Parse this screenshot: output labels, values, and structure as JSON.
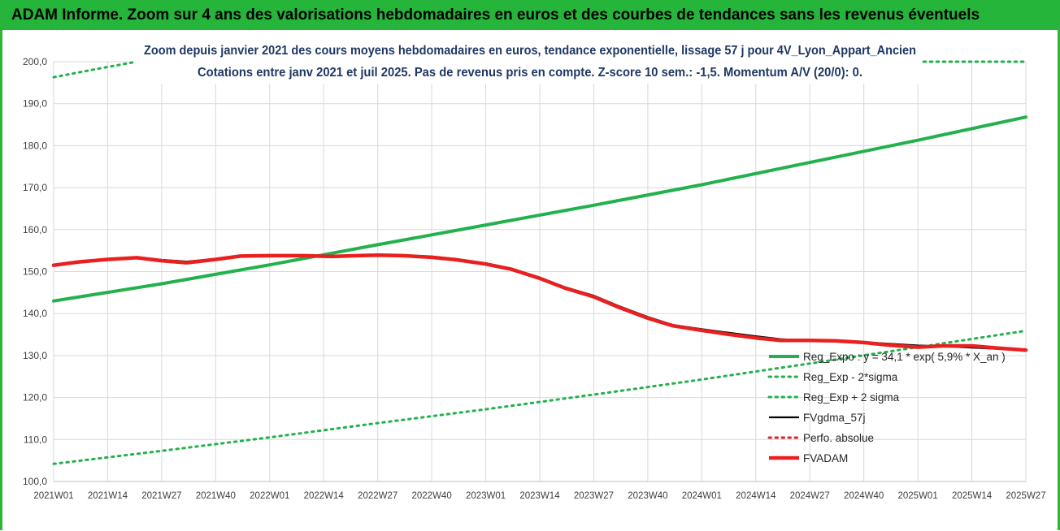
{
  "banner": {
    "title": "ADAM Informe. Zoom sur 4 ans des valorisations hebdomadaires en euros et des courbes de tendances sans les revenus éventuels"
  },
  "colors": {
    "banner_bg": "#24b53a",
    "trend": "#22b14c",
    "bands": "#22b14c",
    "fvgdma": "#000000",
    "perfo": "#e8201f",
    "fvadam": "#e8201f",
    "grid": "#d9d9d9",
    "title_text": "#1f3864"
  },
  "chart_data": {
    "type": "line",
    "title": "Zoom depuis janvier 2021 des cours moyens hebdomadaires en euros, tendance exponentielle, lissage 57 j pour 4V_Lyon_Appart_Ancien",
    "subtitle": "Cotations entre janv 2021 et juil 2025. Pas de revenus pris en compte. Z-score 10 sem.: -1,5. Momentum A/V (20/0): 0.",
    "xlabel": "",
    "ylabel": "",
    "ylim": [
      100,
      200
    ],
    "xlim": [
      0,
      234
    ],
    "grid": true,
    "legend_position": "bottom-right",
    "y_ticks": [
      "100,0",
      "110,0",
      "120,0",
      "130,0",
      "140,0",
      "150,0",
      "160,0",
      "170,0",
      "180,0",
      "190,0",
      "200,0"
    ],
    "y_tick_values": [
      100,
      110,
      120,
      130,
      140,
      150,
      160,
      170,
      180,
      190,
      200
    ],
    "x_ticks": [
      "2021W01",
      "2021W14",
      "2021W27",
      "2021W40",
      "2022W01",
      "2022W14",
      "2022W27",
      "2022W40",
      "2023W01",
      "2023W14",
      "2023W27",
      "2023W40",
      "2024W01",
      "2024W14",
      "2024W27",
      "2024W40",
      "2025W01",
      "2025W14",
      "2025W27"
    ],
    "x_tick_values": [
      0,
      13,
      26,
      39,
      52,
      65,
      78,
      91,
      104,
      117,
      130,
      143,
      156,
      169,
      182,
      195,
      208,
      221,
      234
    ],
    "series": [
      {
        "name": "Reg_Expo : y = 34,1 * exp( 5,9% * X_an )",
        "style": "solid-thick",
        "color": "#22b14c",
        "x": [
          0,
          26,
          52,
          78,
          104,
          130,
          156,
          182,
          208,
          234
        ],
        "y": [
          143.0,
          147.1,
          151.6,
          156.4,
          161.1,
          165.8,
          170.7,
          176.0,
          181.3,
          186.8
        ]
      },
      {
        "name": "Reg_Exp - 2*sigma",
        "style": "dotted",
        "color": "#22b14c",
        "x": [
          0,
          26,
          52,
          78,
          104,
          130,
          156,
          182,
          208,
          234
        ],
        "y": [
          104.2,
          107.3,
          110.5,
          113.9,
          117.2,
          120.7,
          124.3,
          128.1,
          132.0,
          135.9
        ]
      },
      {
        "name": "Reg_Exp + 2 sigma",
        "style": "dotted",
        "color": "#22b14c",
        "x": [
          0,
          10,
          20,
          30,
          52,
          78,
          104,
          130,
          156,
          182,
          208,
          234
        ],
        "y": [
          196.3,
          198.2,
          200.0,
          200.0,
          200.0,
          200.0,
          200.0,
          200.0,
          200.0,
          200.0,
          200.0,
          200.0
        ]
      },
      {
        "name": "FVgdma_57j",
        "style": "solid",
        "color": "#000000",
        "x": [
          0,
          6,
          13,
          20,
          26,
          32,
          39,
          45,
          52,
          60,
          67,
          73,
          78,
          84,
          91,
          97,
          104,
          110,
          117,
          123,
          130,
          136,
          143,
          149,
          156,
          162,
          169,
          175,
          182,
          188,
          195,
          201,
          208,
          214,
          221,
          227,
          234
        ],
        "y": [
          151.5,
          152.4,
          153.0,
          153.4,
          152.8,
          152.4,
          153.0,
          153.8,
          153.8,
          153.8,
          153.8,
          153.8,
          153.9,
          153.9,
          153.6,
          153.0,
          152.0,
          150.8,
          148.6,
          146.3,
          144.3,
          141.8,
          139.2,
          137.3,
          136.3,
          135.5,
          134.6,
          133.9,
          133.6,
          133.4,
          133.2,
          132.8,
          132.4,
          132.2,
          131.9,
          131.6,
          131.4
        ]
      },
      {
        "name": "Perfo. absolue",
        "style": "dotted",
        "color": "#e8201f",
        "x": [
          0,
          6,
          13,
          20,
          26,
          32,
          39,
          45,
          52,
          60,
          67,
          73,
          78,
          84,
          91,
          97,
          104,
          110,
          117,
          123,
          130,
          136,
          143,
          149,
          156,
          162,
          169,
          175,
          182,
          188,
          195,
          201,
          208,
          214,
          221,
          227,
          234
        ],
        "y": [
          151.5,
          152.3,
          152.9,
          153.3,
          152.6,
          152.1,
          152.9,
          153.7,
          153.8,
          153.8,
          153.6,
          153.8,
          153.9,
          153.8,
          153.4,
          152.8,
          151.8,
          150.6,
          148.4,
          146.1,
          144.0,
          141.5,
          138.9,
          137.1,
          136.0,
          135.1,
          134.2,
          133.6,
          133.6,
          133.5,
          133.1,
          132.5,
          132.0,
          132.3,
          132.3,
          131.8,
          131.3
        ]
      },
      {
        "name": "FVADAM",
        "style": "solid-thick",
        "color": "#e8201f",
        "x": [
          0,
          6,
          13,
          20,
          26,
          32,
          39,
          45,
          52,
          60,
          67,
          73,
          78,
          84,
          91,
          97,
          104,
          110,
          117,
          123,
          130,
          136,
          143,
          149,
          156,
          162,
          169,
          175,
          182,
          188,
          195,
          201,
          208,
          214,
          221,
          227,
          234
        ],
        "y": [
          151.5,
          152.3,
          152.9,
          153.3,
          152.6,
          152.1,
          152.9,
          153.7,
          153.8,
          153.8,
          153.6,
          153.8,
          153.9,
          153.8,
          153.4,
          152.8,
          151.8,
          150.6,
          148.4,
          146.1,
          144.0,
          141.5,
          138.9,
          137.1,
          136.0,
          135.1,
          134.2,
          133.6,
          133.6,
          133.5,
          133.1,
          132.5,
          132.0,
          132.3,
          132.3,
          131.8,
          131.3
        ]
      }
    ]
  }
}
